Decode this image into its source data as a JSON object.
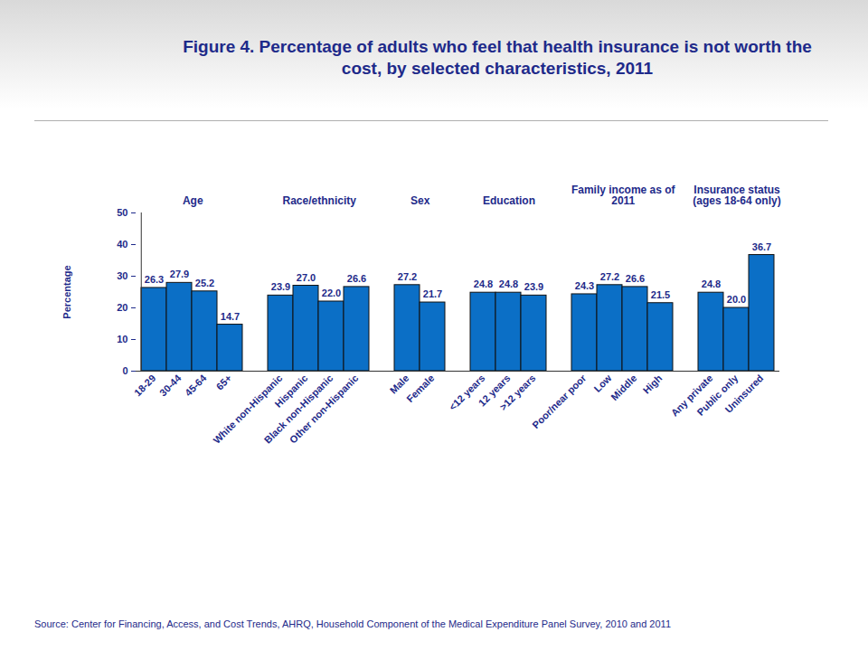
{
  "chart_data": {
    "type": "bar",
    "title": "Figure 4. Percentage of adults who feel that health insurance is not worth the cost, by selected characteristics, 2011",
    "y_label": "Percentage",
    "source": "Source: Center for Financing, Access, and Cost Trends, AHRQ, Household Component of the Medical Expenditure Panel Survey,  2010 and 2011",
    "groups": [
      {
        "name": "Age",
        "categories": [
          "18-29",
          "30-44",
          "45-64",
          "65+"
        ],
        "values": [
          26.3,
          27.9,
          25.2,
          14.7
        ],
        "value_labels": [
          "26.3",
          "27.9",
          "25.2",
          "14.7"
        ]
      },
      {
        "name": "Race/ethnicity",
        "categories": [
          "White non-Hispanic",
          "Hispanic",
          "Black non-Hispanic",
          "Other non-Hispanic"
        ],
        "values": [
          23.9,
          27.0,
          22.0,
          26.6
        ],
        "value_labels": [
          "23.9",
          "27.0",
          "22.0",
          "26.6"
        ]
      },
      {
        "name": "Sex",
        "categories": [
          "Male",
          "Female"
        ],
        "values": [
          27.2,
          21.7
        ],
        "value_labels": [
          "27.2",
          "21.7"
        ]
      },
      {
        "name": "Education",
        "categories": [
          "<12 years",
          "12 years",
          ">12 years"
        ],
        "values": [
          24.8,
          24.8,
          23.9
        ],
        "value_labels": [
          "24.8",
          "24.8",
          "23.9"
        ]
      },
      {
        "name": "Family income as of 2011",
        "categories": [
          "Poor/near poor",
          "Low",
          "Middle",
          "High"
        ],
        "values": [
          24.3,
          27.2,
          26.6,
          21.5
        ],
        "value_labels": [
          "24.3",
          "27.2",
          "26.6",
          "21.5"
        ]
      },
      {
        "name": "Insurance status (ages 18-64 only)",
        "categories": [
          "Any private",
          "Public only",
          "Uninsured"
        ],
        "values": [
          24.8,
          20.0,
          36.7
        ],
        "value_labels": [
          "24.8",
          "20.0",
          "36.7"
        ]
      }
    ],
    "color": "#0b6fc6",
    "ylim": [
      0,
      50
    ],
    "yticks": [
      0,
      10,
      20,
      30,
      40,
      50
    ],
    "grid": false,
    "data_labels": true
  }
}
